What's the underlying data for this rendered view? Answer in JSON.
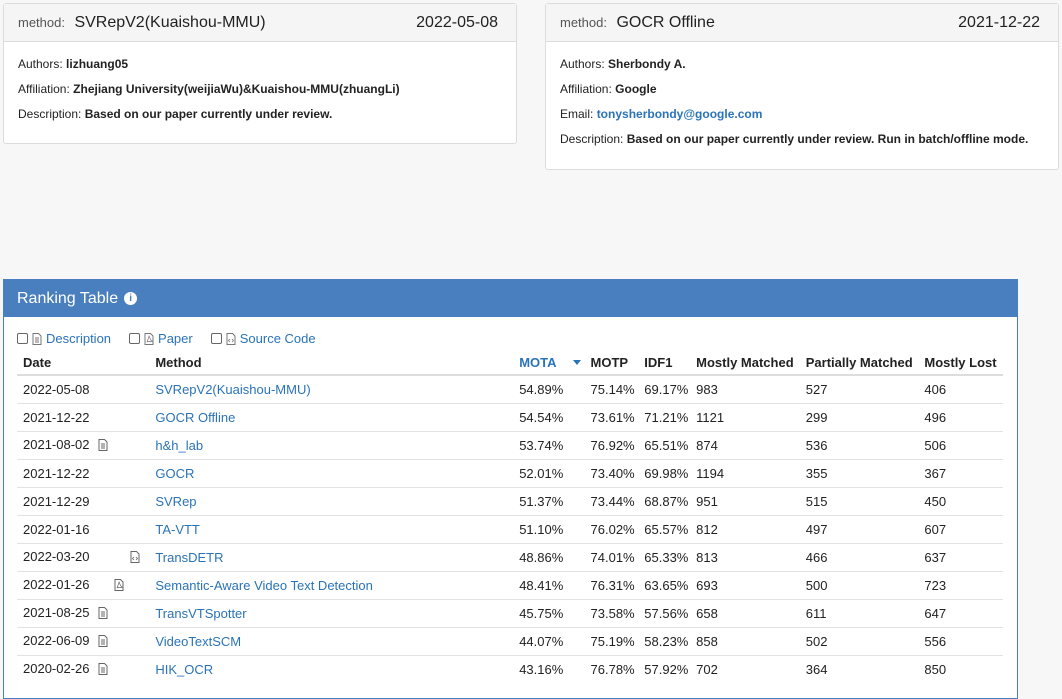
{
  "cards": [
    {
      "method_label": "method:",
      "method_name": "SVRepV2(Kuaishou-MMU)",
      "date": "2022-05-08",
      "fields": [
        {
          "key": "Authors:",
          "value": "lizhuang05",
          "link": false
        },
        {
          "key": "Affiliation:",
          "value": "Zhejiang University(weijiaWu)&Kuaishou-MMU(zhuangLi)",
          "link": false
        },
        {
          "key": "Description:",
          "value": "Based on our paper currently under review.",
          "link": false
        }
      ]
    },
    {
      "method_label": "method:",
      "method_name": "GOCR Offline",
      "date": "2021-12-22",
      "fields": [
        {
          "key": "Authors:",
          "value": "Sherbondy A.",
          "link": false
        },
        {
          "key": "Affiliation:",
          "value": "Google",
          "link": false
        },
        {
          "key": "Email:",
          "value": "tonysherbondy@google.com",
          "link": true
        },
        {
          "key": "Description:",
          "value": "Based on our paper currently under review. Run in batch/offline mode.",
          "link": false
        }
      ]
    }
  ],
  "ranking": {
    "title": "Ranking Table",
    "toggles": [
      {
        "label": "Description",
        "icon": "document-icon"
      },
      {
        "label": "Paper",
        "icon": "pdf-icon"
      },
      {
        "label": "Source Code",
        "icon": "code-file-icon"
      }
    ],
    "columns": [
      "Date",
      "Method",
      "MOTA",
      "MOTP",
      "IDF1",
      "Mostly Matched",
      "Partially Matched",
      "Mostly Lost"
    ],
    "sorted_column": "MOTA",
    "rows": [
      {
        "date": "2022-05-08",
        "icon": "",
        "method": "SVRepV2(Kuaishou-MMU)",
        "mota": "54.89%",
        "motp": "75.14%",
        "idf1": "69.17%",
        "mm": "983",
        "pm": "527",
        "ml": "406"
      },
      {
        "date": "2021-12-22",
        "icon": "",
        "method": "GOCR Offline",
        "mota": "54.54%",
        "motp": "73.61%",
        "idf1": "71.21%",
        "mm": "1121",
        "pm": "299",
        "ml": "496"
      },
      {
        "date": "2021-08-02",
        "icon": "document-icon",
        "method": "h&h_lab",
        "mota": "53.74%",
        "motp": "76.92%",
        "idf1": "65.51%",
        "mm": "874",
        "pm": "536",
        "ml": "506"
      },
      {
        "date": "2021-12-22",
        "icon": "",
        "method": "GOCR",
        "mota": "52.01%",
        "motp": "73.40%",
        "idf1": "69.98%",
        "mm": "1194",
        "pm": "355",
        "ml": "367"
      },
      {
        "date": "2021-12-29",
        "icon": "",
        "method": "SVRep",
        "mota": "51.37%",
        "motp": "73.44%",
        "idf1": "68.87%",
        "mm": "951",
        "pm": "515",
        "ml": "450"
      },
      {
        "date": "2022-01-16",
        "icon": "",
        "method": "TA-VTT",
        "mota": "51.10%",
        "motp": "76.02%",
        "idf1": "65.57%",
        "mm": "812",
        "pm": "497",
        "ml": "607"
      },
      {
        "date": "2022-03-20",
        "icon": "code-file-icon",
        "method": "TransDETR",
        "mota": "48.86%",
        "motp": "74.01%",
        "idf1": "65.33%",
        "mm": "813",
        "pm": "466",
        "ml": "637"
      },
      {
        "date": "2022-01-26",
        "icon": "pdf-icon",
        "method": "Semantic-Aware Video Text Detection",
        "mota": "48.41%",
        "motp": "76.31%",
        "idf1": "63.65%",
        "mm": "693",
        "pm": "500",
        "ml": "723"
      },
      {
        "date": "2021-08-25",
        "icon": "document-icon",
        "method": "TransVTSpotter",
        "mota": "45.75%",
        "motp": "73.58%",
        "idf1": "57.56%",
        "mm": "658",
        "pm": "611",
        "ml": "647"
      },
      {
        "date": "2022-06-09",
        "icon": "document-icon",
        "method": "VideoTextSCM",
        "mota": "44.07%",
        "motp": "75.19%",
        "idf1": "58.23%",
        "mm": "858",
        "pm": "502",
        "ml": "556"
      },
      {
        "date": "2020-02-26",
        "icon": "document-icon",
        "method": "HIK_OCR",
        "mota": "43.16%",
        "motp": "76.78%",
        "idf1": "57.92%",
        "mm": "702",
        "pm": "364",
        "ml": "850"
      }
    ]
  }
}
